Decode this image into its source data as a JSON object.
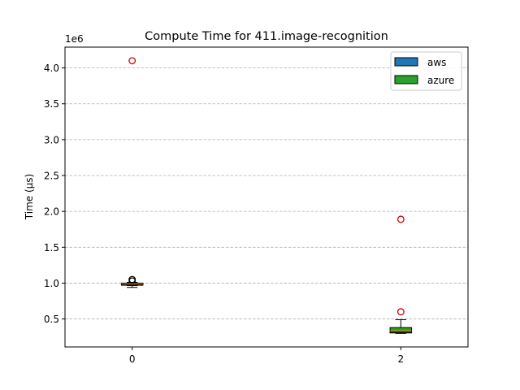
{
  "chart_data": {
    "type": "box",
    "title": "Compute Time for 411.image-recognition",
    "ylabel": "Time (µs)",
    "xlabel": "",
    "y_multiplier": "1e6",
    "xlim": [
      -0.5,
      2.5
    ],
    "ylim": [
      110000,
      4290000
    ],
    "x_ticks": [
      {
        "value": 0,
        "label": "0"
      },
      {
        "value": 2,
        "label": "2"
      }
    ],
    "y_ticks": [
      {
        "value": 500000,
        "label": "0.5"
      },
      {
        "value": 1000000,
        "label": "1.0"
      },
      {
        "value": 1500000,
        "label": "1.5"
      },
      {
        "value": 2000000,
        "label": "2.0"
      },
      {
        "value": 2500000,
        "label": "2.5"
      },
      {
        "value": 3000000,
        "label": "3.0"
      },
      {
        "value": 3500000,
        "label": "3.5"
      },
      {
        "value": 4000000,
        "label": "4.0"
      }
    ],
    "grid": {
      "y": true,
      "style": "dashed"
    },
    "legend_position": "top-right",
    "series": [
      {
        "name": "aws",
        "color": "#1f77b4",
        "boxes": [
          {
            "x": 0,
            "whisker_low": 940000,
            "q1": 970000,
            "median": 985000,
            "q3": 995000,
            "whisker_high": 1010000,
            "outliers": [
              1030000,
              1050000
            ]
          },
          {
            "x": 2,
            "whisker_low": 300000,
            "q1": 305000,
            "median": 318000,
            "q3": 330000,
            "whisker_high": 345000,
            "outliers": []
          }
        ]
      },
      {
        "name": "azure",
        "color": "#2ca02c",
        "boxes": [
          {
            "x": 0,
            "whisker_low": 965000,
            "q1": 978000,
            "median": 990000,
            "q3": 1000000,
            "whisker_high": 1008000,
            "outliers": [
              4100000
            ]
          },
          {
            "x": 2,
            "whisker_low": 300000,
            "q1": 318000,
            "median": 335000,
            "q3": 380000,
            "whisker_high": 490000,
            "outliers": [
              600000,
              1890000
            ]
          }
        ]
      }
    ],
    "outlier_colors": {
      "aws": "#000000",
      "azure": "#cc0000"
    },
    "median_color": "#ff7f0e"
  }
}
